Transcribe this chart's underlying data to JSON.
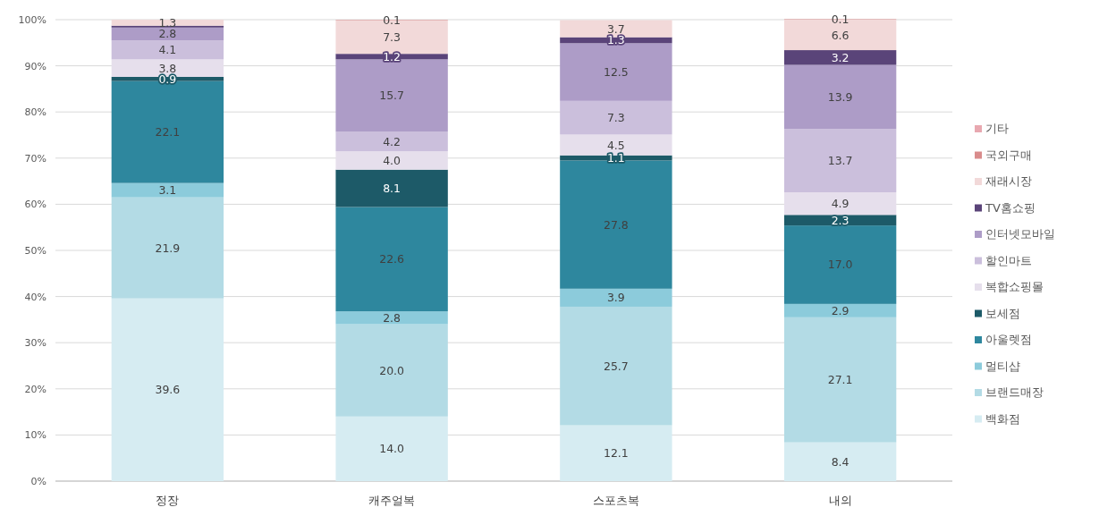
{
  "chart_data": {
    "type": "bar",
    "stacked": true,
    "categories": [
      "정장",
      "캐주얼복",
      "스포츠복",
      "내의"
    ],
    "ylim": [
      0,
      100
    ],
    "yticks": [
      {
        "value": 0,
        "label": "0%"
      },
      {
        "value": 10,
        "label": "10%"
      },
      {
        "value": 20,
        "label": "20%"
      },
      {
        "value": 30,
        "label": "30%"
      },
      {
        "value": 40,
        "label": "40%"
      },
      {
        "value": 50,
        "label": "50%"
      },
      {
        "value": 60,
        "label": "60%"
      },
      {
        "value": 70,
        "label": "70%"
      },
      {
        "value": 80,
        "label": "80%"
      },
      {
        "value": 90,
        "label": "90%"
      },
      {
        "value": 100,
        "label": "100%"
      }
    ],
    "grid": "y",
    "legend": "right",
    "series": [
      {
        "name": "백화점",
        "color": "#d6ecf2",
        "values": [
          39.6,
          14.0,
          12.1,
          8.4
        ],
        "value_labels": [
          "39.6",
          "14.0",
          "12.1",
          "8.4"
        ]
      },
      {
        "name": "브랜드매장",
        "color": "#b3dbe5",
        "values": [
          21.9,
          20.0,
          25.7,
          27.1
        ],
        "value_labels": [
          "21.9",
          "20.0",
          "25.7",
          "27.1"
        ]
      },
      {
        "name": "멀티샵",
        "color": "#8ccbdb",
        "values": [
          3.1,
          2.8,
          3.9,
          2.9
        ],
        "value_labels": [
          "3.1",
          "2.8",
          "3.9",
          "2.9"
        ]
      },
      {
        "name": "아울렛점",
        "color": "#2e879e",
        "values": [
          22.1,
          22.6,
          27.8,
          17.0
        ],
        "value_labels": [
          "22.1",
          "22.6",
          "27.8",
          "17.0"
        ]
      },
      {
        "name": "보세점",
        "color": "#1d5a68",
        "values": [
          0.9,
          8.1,
          1.1,
          2.3
        ],
        "value_labels": [
          "0.9",
          "8.1",
          "1.1",
          "2.3"
        ]
      },
      {
        "name": "복합쇼핑몰",
        "color": "#e6dfec",
        "values": [
          3.8,
          4.0,
          4.5,
          4.9
        ],
        "value_labels": [
          "3.8",
          "4.0",
          "4.5",
          "4.9"
        ]
      },
      {
        "name": "할인마트",
        "color": "#cbbfdc",
        "values": [
          4.1,
          4.2,
          7.3,
          13.7
        ],
        "value_labels": [
          "4.1",
          "4.2",
          "7.3",
          "13.7"
        ]
      },
      {
        "name": "인터넷모바일",
        "color": "#ad9cc7",
        "values": [
          2.8,
          15.7,
          12.5,
          13.9
        ],
        "value_labels": [
          "2.8",
          "15.7",
          "12.5",
          "13.9"
        ]
      },
      {
        "name": "TV홈쇼핑",
        "color": "#5a4479",
        "values": [
          0.4,
          1.2,
          1.3,
          3.2
        ],
        "value_labels": [
          null,
          "1.2",
          "1.3",
          "3.2"
        ]
      },
      {
        "name": "재래시장",
        "color": "#f2d9d9",
        "values": [
          1.3,
          7.3,
          3.7,
          6.6
        ],
        "value_labels": [
          "1.3",
          "7.3",
          "3.7",
          "6.6"
        ]
      },
      {
        "name": "국외구매",
        "color": "#d98c8c",
        "values": [
          null,
          0.1,
          null,
          0.1
        ],
        "value_labels": [
          null,
          "0.1",
          null,
          "0.1"
        ]
      },
      {
        "name": "기타",
        "color": "#e8a8b0",
        "values": [
          null,
          null,
          null,
          null
        ]
      }
    ]
  }
}
